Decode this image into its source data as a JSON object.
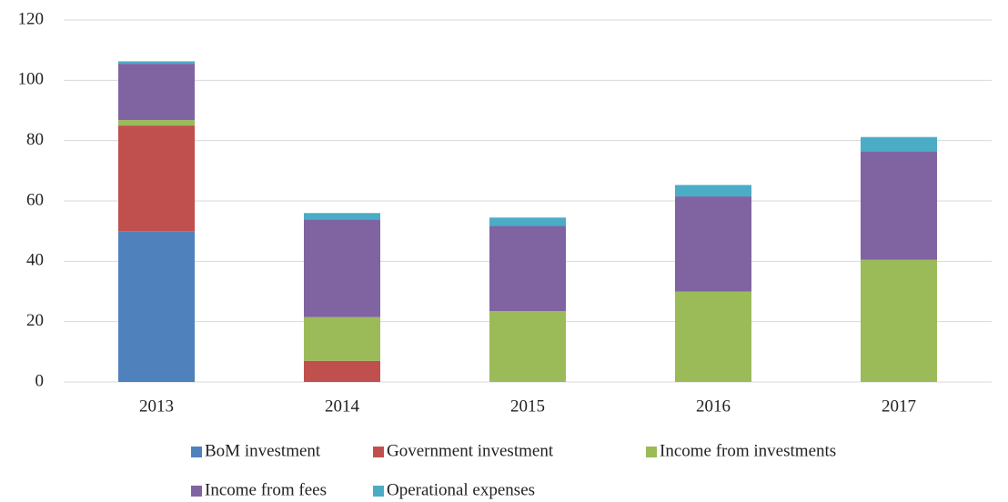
{
  "chart_data": {
    "type": "stacked_bar",
    "categories": [
      "2013",
      "2014",
      "2015",
      "2016",
      "2017"
    ],
    "series": [
      {
        "name": "BoM investment",
        "color": "#4f81bd",
        "values": [
          50,
          0,
          0,
          0,
          0
        ]
      },
      {
        "name": "Government investment",
        "color": "#c0504d",
        "values": [
          35,
          7,
          0,
          0,
          0
        ]
      },
      {
        "name": "Income from investments",
        "color": "#9bbb59",
        "values": [
          1.8,
          14.5,
          23.5,
          30,
          40.5
        ]
      },
      {
        "name": "Income from fees",
        "color": "#8064a2",
        "values": [
          18.7,
          32.3,
          28.2,
          31.5,
          36
        ]
      },
      {
        "name": "Operational expenses",
        "color": "#4bacc6",
        "values": [
          0.8,
          2.2,
          2.8,
          3.8,
          4.7
        ]
      }
    ],
    "ylim": [
      0,
      120
    ],
    "yticks": [
      0,
      20,
      40,
      60,
      80,
      100,
      120
    ],
    "grid": true,
    "legend": "bottom"
  }
}
